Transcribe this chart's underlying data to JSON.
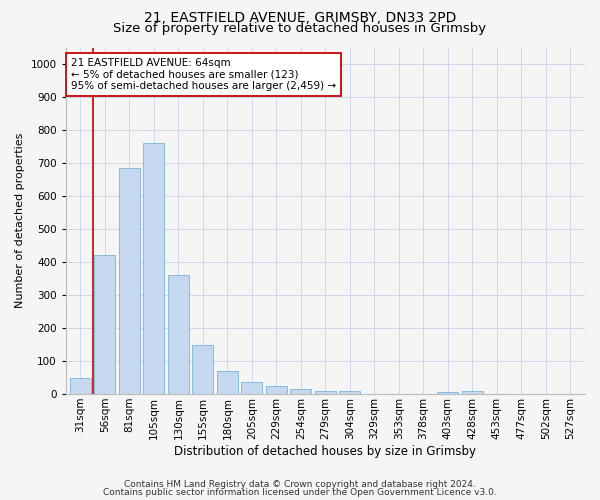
{
  "title1": "21, EASTFIELD AVENUE, GRIMSBY, DN33 2PD",
  "title2": "Size of property relative to detached houses in Grimsby",
  "xlabel": "Distribution of detached houses by size in Grimsby",
  "ylabel": "Number of detached properties",
  "categories": [
    "31sqm",
    "56sqm",
    "81sqm",
    "105sqm",
    "130sqm",
    "155sqm",
    "180sqm",
    "205sqm",
    "229sqm",
    "254sqm",
    "279sqm",
    "304sqm",
    "329sqm",
    "353sqm",
    "378sqm",
    "403sqm",
    "428sqm",
    "453sqm",
    "477sqm",
    "502sqm",
    "527sqm"
  ],
  "values": [
    50,
    420,
    685,
    760,
    360,
    150,
    70,
    37,
    25,
    15,
    10,
    8,
    0,
    0,
    0,
    7,
    10,
    0,
    0,
    0,
    0
  ],
  "bar_color": "#c5d8f0",
  "bar_edge_color": "#7ab4d8",
  "vline_x": 0.5,
  "vline_color": "#cc0000",
  "annotation_line1": "21 EASTFIELD AVENUE: 64sqm",
  "annotation_line2": "← 5% of detached houses are smaller (123)",
  "annotation_line3": "95% of semi-detached houses are larger (2,459) →",
  "annotation_box_color": "#ffffff",
  "annotation_box_edge": "#cc0000",
  "ylim": [
    0,
    1050
  ],
  "yticks": [
    0,
    100,
    200,
    300,
    400,
    500,
    600,
    700,
    800,
    900,
    1000
  ],
  "footer1": "Contains HM Land Registry data © Crown copyright and database right 2024.",
  "footer2": "Contains public sector information licensed under the Open Government Licence v3.0.",
  "bg_color": "#f5f5f5",
  "grid_color": "#ccd8ec",
  "title1_fontsize": 10,
  "title2_fontsize": 9.5,
  "xlabel_fontsize": 8.5,
  "ylabel_fontsize": 8,
  "tick_fontsize": 7.5,
  "annot_fontsize": 7.5,
  "footer_fontsize": 6.5
}
